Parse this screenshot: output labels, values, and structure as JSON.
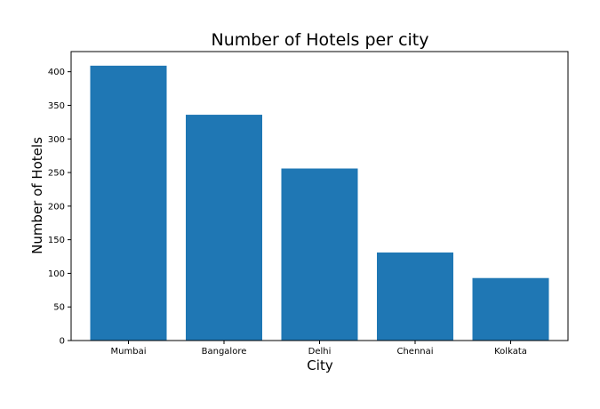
{
  "chart_data": {
    "type": "bar",
    "title": "Number of Hotels per city",
    "xlabel": "City",
    "ylabel": "Number of Hotels",
    "categories": [
      "Mumbai",
      "Bangalore",
      "Delhi",
      "Chennai",
      "Kolkata"
    ],
    "values": [
      409,
      336,
      256,
      131,
      93
    ],
    "ylim": [
      0,
      430
    ],
    "yticks": [
      0,
      50,
      100,
      150,
      200,
      250,
      300,
      350,
      400
    ],
    "bar_color": "#1f77b4",
    "grid": false,
    "legend": "none"
  }
}
